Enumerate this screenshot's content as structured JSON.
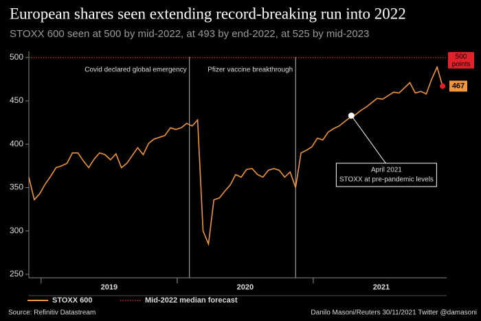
{
  "chart_data": {
    "type": "line",
    "title": "European shares seen extending record-breaking run into 2022",
    "subtitle": "STOXX 600 seen at 500 by mid-2022, at 493 by end-2022, at 525 by mid-2023",
    "source": "Source: Refinitiv Datastream",
    "credit": "Danilo Masoni/Reuters 30/11/2021 Twitter @damasoni",
    "xlim": [
      2018.91,
      2021.98
    ],
    "xticks": [
      {
        "value": 2019.5,
        "label": "2019"
      },
      {
        "value": 2020.5,
        "label": "2020"
      },
      {
        "value": 2021.5,
        "label": "2021"
      }
    ],
    "ylim": [
      246,
      507
    ],
    "yticks": [
      250,
      300,
      350,
      400,
      450,
      500
    ],
    "x": [
      2018.91,
      2018.95,
      2018.99,
      2019.03,
      2019.07,
      2019.11,
      2019.15,
      2019.19,
      2019.23,
      2019.27,
      2019.31,
      2019.35,
      2019.39,
      2019.43,
      2019.47,
      2019.51,
      2019.55,
      2019.59,
      2019.63,
      2019.67,
      2019.71,
      2019.75,
      2019.79,
      2019.83,
      2019.87,
      2019.91,
      2019.95,
      2019.99,
      2020.03,
      2020.07,
      2020.11,
      2020.15,
      2020.19,
      2020.23,
      2020.27,
      2020.31,
      2020.35,
      2020.39,
      2020.43,
      2020.47,
      2020.51,
      2020.55,
      2020.59,
      2020.63,
      2020.67,
      2020.71,
      2020.75,
      2020.79,
      2020.83,
      2020.87,
      2020.91,
      2020.95,
      2020.99,
      2021.03,
      2021.07,
      2021.11,
      2021.15,
      2021.19,
      2021.23,
      2021.27,
      2021.31,
      2021.35,
      2021.39,
      2021.43,
      2021.47,
      2021.51,
      2021.55,
      2021.59,
      2021.63,
      2021.67,
      2021.71,
      2021.75,
      2021.79,
      2021.83,
      2021.87,
      2021.91,
      2021.95
    ],
    "series": [
      {
        "name": "STOXX 600",
        "color": "#f0963c",
        "values": [
          362,
          336,
          343,
          354,
          363,
          373,
          375,
          378,
          390,
          390,
          381,
          373,
          383,
          390,
          388,
          382,
          389,
          373,
          378,
          387,
          396,
          388,
          401,
          406,
          408,
          410,
          419,
          417,
          419,
          424,
          421,
          428,
          300,
          285,
          336,
          338,
          346,
          353,
          365,
          362,
          371,
          372,
          365,
          362,
          370,
          372,
          370,
          362,
          368,
          350,
          390,
          393,
          397,
          407,
          405,
          414,
          418,
          421,
          426,
          431,
          434,
          439,
          443,
          448,
          453,
          452,
          456,
          460,
          459,
          465,
          471,
          459,
          461,
          458,
          475,
          489,
          467
        ]
      }
    ],
    "forecast": {
      "name": "Mid-2022 median forecast",
      "value": 500,
      "label_lines": [
        "500",
        "points"
      ],
      "color": "#e4202a"
    },
    "events": [
      {
        "x": 2020.09,
        "label": "Covid declared global emergency"
      },
      {
        "x": 2020.87,
        "label": "Pfizer vaccine breakthrough"
      }
    ],
    "callout": {
      "x": 2021.28,
      "value": 433,
      "lines": [
        "April 2021",
        "STOXX at pre-pandemic levels"
      ]
    }
  }
}
